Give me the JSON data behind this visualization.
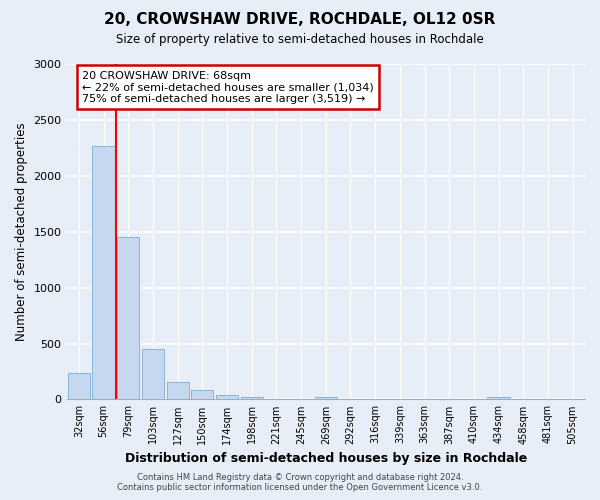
{
  "title_line1": "20, CROWSHAW DRIVE, ROCHDALE, OL12 0SR",
  "title_line2": "Size of property relative to semi-detached houses in Rochdale",
  "xlabel": "Distribution of semi-detached houses by size in Rochdale",
  "ylabel": "Number of semi-detached properties",
  "bin_labels": [
    "32sqm",
    "56sqm",
    "79sqm",
    "103sqm",
    "127sqm",
    "150sqm",
    "174sqm",
    "198sqm",
    "221sqm",
    "245sqm",
    "269sqm",
    "292sqm",
    "316sqm",
    "339sqm",
    "363sqm",
    "387sqm",
    "410sqm",
    "434sqm",
    "458sqm",
    "481sqm",
    "505sqm"
  ],
  "bar_values": [
    235,
    2270,
    1455,
    455,
    155,
    85,
    40,
    20,
    0,
    0,
    20,
    0,
    0,
    0,
    0,
    0,
    0,
    20,
    0,
    0,
    0
  ],
  "bar_color": "#c5d8f0",
  "bar_edge_color": "#7bafd4",
  "red_line_x": 1.5,
  "annotation_title": "20 CROWSHAW DRIVE: 68sqm",
  "annotation_line1": "← 22% of semi-detached houses are smaller (1,034)",
  "annotation_line2": "75% of semi-detached houses are larger (3,519) →",
  "annotation_box_color": "#ffffff",
  "annotation_box_edge": "#cc0000",
  "ylim": [
    0,
    3000
  ],
  "yticks": [
    0,
    500,
    1000,
    1500,
    2000,
    2500,
    3000
  ],
  "footer_line1": "Contains HM Land Registry data © Crown copyright and database right 2024.",
  "footer_line2": "Contains public sector information licensed under the Open Government Licence v3.0.",
  "background_color": "#e8eef8",
  "plot_background": "#e8eef8"
}
